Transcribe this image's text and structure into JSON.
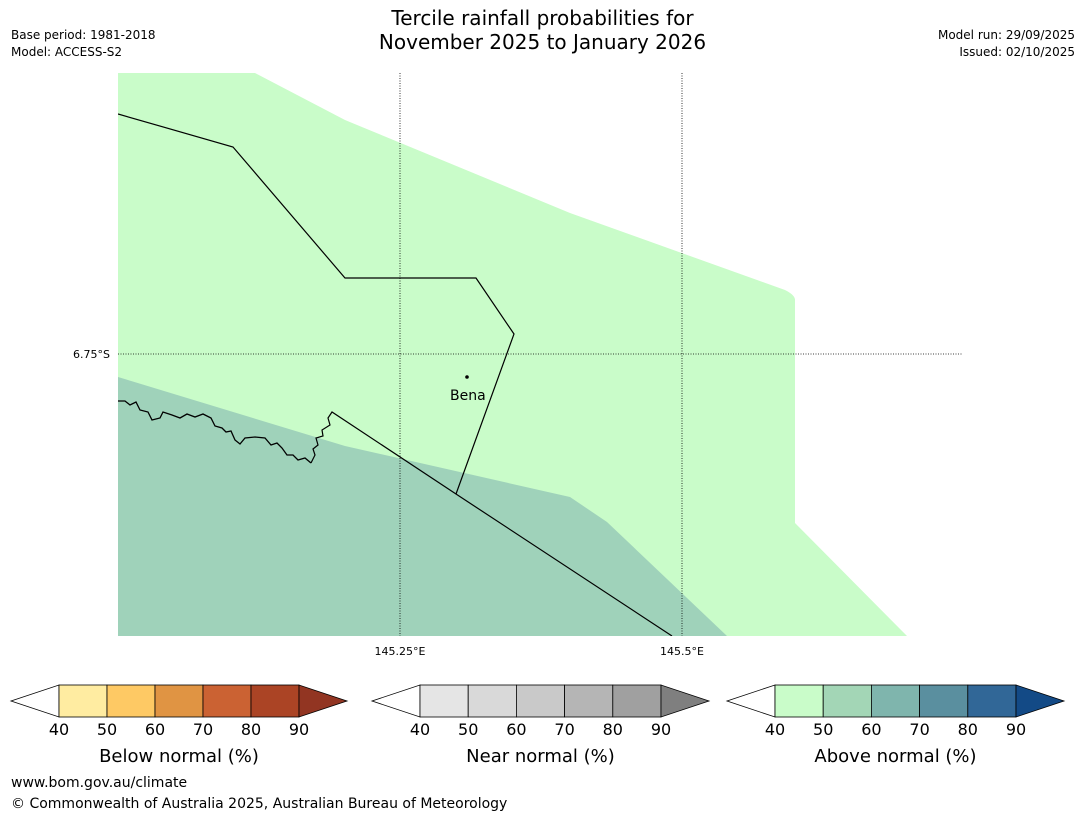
{
  "title": {
    "line1": "Tercile rainfall probabilities for",
    "line2": "November 2025 to January 2026"
  },
  "meta": {
    "base_period": "Base period: 1981-2018",
    "model": "Model: ACCESS-S2",
    "model_run": "Model run: 29/09/2025",
    "issued": "Issued: 02/10/2025"
  },
  "map": {
    "lat_label": "6.75°S",
    "lon_labels": [
      "145.25°E",
      "145.5°E"
    ],
    "town": "Bena",
    "categories": {
      "above_40_50": "#c9fcc9",
      "above_50_60": "#9fd2ba"
    }
  },
  "colorbars": [
    {
      "name": "below",
      "title": "Below normal (%)",
      "ticks": [
        "40",
        "50",
        "60",
        "70",
        "80",
        "90"
      ],
      "under_color": "#ffffff",
      "colors": [
        "#ffeca1",
        "#fec964",
        "#e09443",
        "#cb6233",
        "#ab4425"
      ],
      "over_color": "#923522"
    },
    {
      "name": "near",
      "title": "Near normal (%)",
      "ticks": [
        "40",
        "50",
        "60",
        "70",
        "80",
        "90"
      ],
      "under_color": "#ffffff",
      "colors": [
        "#e5e5e5",
        "#d9d9d9",
        "#c9c9c9",
        "#b5b5b5",
        "#a0a0a0"
      ],
      "over_color": "#7f7f7f"
    },
    {
      "name": "above",
      "title": "Above normal (%)",
      "ticks": [
        "40",
        "50",
        "60",
        "70",
        "80",
        "90"
      ],
      "under_color": "#ffffff",
      "colors": [
        "#c9fcc9",
        "#a3d6b6",
        "#7fb5ad",
        "#5a8f9f",
        "#316797"
      ],
      "over_color": "#134a86"
    }
  ],
  "footer": {
    "url": "www.bom.gov.au/climate",
    "copyright": "© Commonwealth of Australia 2025, Australian Bureau of Meteorology"
  }
}
